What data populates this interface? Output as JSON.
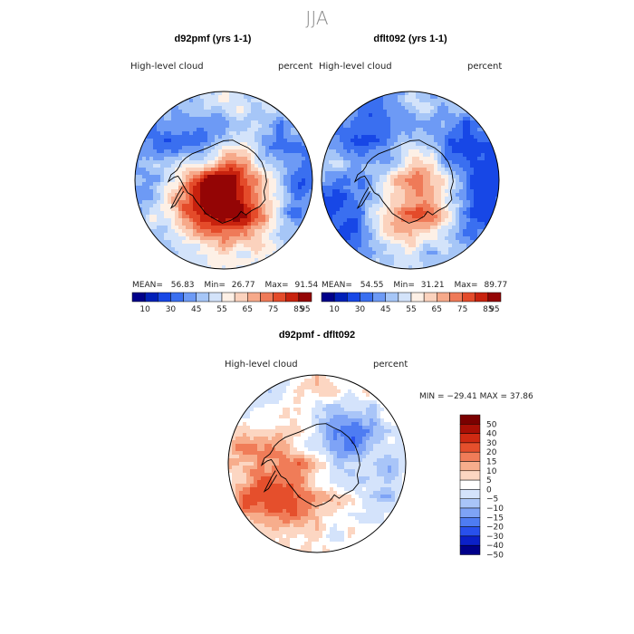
{
  "season_title": "JJA",
  "colors": {
    "scale": [
      "#00008a",
      "#0020b8",
      "#1747e6",
      "#3a6ff0",
      "#6d9af5",
      "#a6c6f7",
      "#d3e3fa",
      "#fdf0e6",
      "#fbd2bd",
      "#f6a98a",
      "#ef7a58",
      "#e44b2a",
      "#c8220e",
      "#940505"
    ],
    "diff_scale": [
      "#00008a",
      "#0b20c8",
      "#2850ec",
      "#4e7cf2",
      "#7ea3f6",
      "#a9c5f8",
      "#d4e3fb",
      "#ffffff",
      "#fcd6c2",
      "#f7ad8c",
      "#f07c58",
      "#e54f2c",
      "#cf2a12",
      "#a80f05",
      "#7a0000"
    ],
    "coast": "#000000"
  },
  "panels": {
    "left": {
      "title": "d92pmf (yrs 1-1)",
      "variable": "High-level  cloud",
      "units": "percent",
      "stats": {
        "mean_label": "MEAN=",
        "mean": "56.83",
        "min_label": "Min=",
        "min": "26.77",
        "max_label": "Max=",
        "max": "91.54"
      }
    },
    "right": {
      "title": "dflt092 (yrs 1-1)",
      "variable": "High-level  cloud",
      "units": "percent",
      "stats": {
        "mean_label": "MEAN=",
        "mean": "54.55",
        "min_label": "Min=",
        "min": "31.21",
        "max_label": "Max=",
        "max": "89.77"
      }
    },
    "diff": {
      "title": "d92pmf - dflt092",
      "variable": "High-level  cloud",
      "units": "percent",
      "stats_text": "MIN = −29.41 MAX =  37.86"
    }
  },
  "chart_data": [
    {
      "type": "heatmap",
      "projection": "south polar stereographic",
      "title": "d92pmf (yrs 1-1)",
      "variable": "High-level cloud",
      "units": "percent",
      "mean": 56.83,
      "min": 26.77,
      "max": 91.54,
      "colorbar_ticks": [
        "10",
        "30",
        "45",
        "55",
        "65",
        "75",
        "85",
        "95"
      ],
      "field": {
        "base": 55,
        "blobs": [
          {
            "lon": 60,
            "r": 0.35,
            "amp": 32,
            "w": 0.35
          },
          {
            "lon": 150,
            "r": 0.3,
            "amp": 26,
            "w": 0.3
          },
          {
            "lon": 300,
            "r": 0.28,
            "amp": 16,
            "w": 0.25
          },
          {
            "lon": 0,
            "r": 0.95,
            "amp": -18,
            "w": 0.5
          },
          {
            "lon": 250,
            "r": 0.45,
            "amp": -22,
            "w": 0.25
          },
          {
            "lon": 200,
            "r": 0.85,
            "amp": -10,
            "w": 0.35
          }
        ]
      }
    },
    {
      "type": "heatmap",
      "projection": "south polar stereographic",
      "title": "dflt092 (yrs 1-1)",
      "variable": "High-level cloud",
      "units": "percent",
      "mean": 54.55,
      "min": 31.21,
      "max": 89.77,
      "colorbar_ticks": [
        "10",
        "30",
        "45",
        "55",
        "65",
        "75",
        "85",
        "95"
      ],
      "field": {
        "base": 52,
        "blobs": [
          {
            "lon": 60,
            "r": 0.3,
            "amp": 28,
            "w": 0.3
          },
          {
            "lon": 320,
            "r": 0.25,
            "amp": 12,
            "w": 0.22
          },
          {
            "lon": 110,
            "r": 0.55,
            "amp": 10,
            "w": 0.25
          },
          {
            "lon": 0,
            "r": 0.95,
            "amp": -22,
            "w": 0.5
          },
          {
            "lon": 240,
            "r": 0.7,
            "amp": -14,
            "w": 0.3
          },
          {
            "lon": 150,
            "r": 0.9,
            "amp": -12,
            "w": 0.3
          }
        ]
      }
    },
    {
      "type": "heatmap",
      "projection": "south polar stereographic",
      "title": "d92pmf - dflt092",
      "variable": "High-level cloud",
      "units": "percent",
      "min": -29.41,
      "max": 37.86,
      "colorbar_ticks": [
        "50",
        "40",
        "30",
        "20",
        "15",
        "10",
        "5",
        "0",
        "−5",
        "−10",
        "−15",
        "−20",
        "−30",
        "−40",
        "−50"
      ],
      "field": {
        "base": 2,
        "blobs": [
          {
            "lon": 130,
            "r": 0.45,
            "amp": 18,
            "w": 0.3
          },
          {
            "lon": 150,
            "r": 0.85,
            "amp": 14,
            "w": 0.25
          },
          {
            "lon": 200,
            "r": 0.7,
            "amp": 10,
            "w": 0.3
          },
          {
            "lon": 300,
            "r": 0.4,
            "amp": -16,
            "w": 0.25
          },
          {
            "lon": 0,
            "r": 0.8,
            "amp": -10,
            "w": 0.35
          },
          {
            "lon": 230,
            "r": 0.95,
            "amp": -8,
            "w": 0.25
          }
        ]
      }
    }
  ]
}
